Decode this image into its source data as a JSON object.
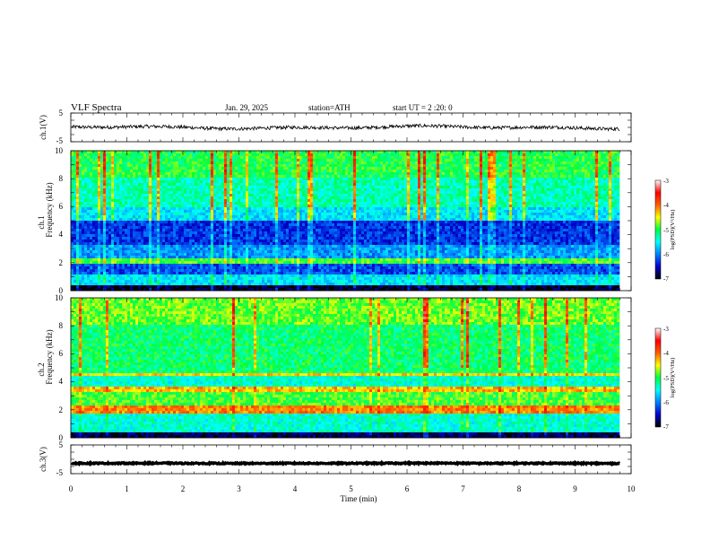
{
  "header": {
    "title": "VLF  Spectra",
    "date": "Jan. 29, 2025",
    "station": "station=ATH",
    "start": "start  UT  =   2  :20: 0"
  },
  "chart_data": [
    {
      "type": "line",
      "panel": "ch1-waveform",
      "ylabel": "ch.1(V)",
      "y_ticks": [
        "5",
        "-5"
      ],
      "ylim": [
        -5,
        5
      ],
      "xlim": [
        0,
        10
      ],
      "data_extent_min": 9.8,
      "series": [
        {
          "approx_level": 0,
          "amplitude": 0.6
        }
      ]
    },
    {
      "type": "heatmap",
      "panel": "ch1-spectrogram",
      "label_ch": "ch.1",
      "ylabel": "Frequency  (kHz)",
      "y_ticks": [
        "10",
        "8",
        "6",
        "4",
        "2",
        "0"
      ],
      "ylim": [
        0,
        10
      ],
      "xlim": [
        0,
        10
      ],
      "data_extent_min": 9.8,
      "colorbar": {
        "ticks": [
          "-3",
          "-4",
          "-5",
          "-6",
          "-7"
        ],
        "label": "log(PSD)(V²/Hz)",
        "range": [
          -7,
          -3
        ],
        "colors": [
          "#000000",
          "#0000cc",
          "#0080ff",
          "#00ffff",
          "#00ff40",
          "#ffff00",
          "#ff6000",
          "#ff0000",
          "#ffffff"
        ]
      }
    },
    {
      "type": "heatmap",
      "panel": "ch2-spectrogram",
      "label_ch": "ch.2",
      "ylabel": "Frequency  (kHz)",
      "y_ticks": [
        "10",
        "8",
        "6",
        "4",
        "2",
        "0"
      ],
      "ylim": [
        0,
        10
      ],
      "xlim": [
        0,
        10
      ],
      "data_extent_min": 9.8,
      "colorbar": {
        "ticks": [
          "-3",
          "-4",
          "-5",
          "-6",
          "-7"
        ],
        "label": "log(PSD)(V²/Hz)",
        "range": [
          -7,
          -3
        ],
        "colors": [
          "#000000",
          "#0000cc",
          "#0080ff",
          "#00ffff",
          "#00ff40",
          "#ffff00",
          "#ff6000",
          "#ff0000",
          "#ffffff"
        ]
      }
    },
    {
      "type": "line",
      "panel": "ch3-waveform",
      "ylabel": "ch.3(V)",
      "y_ticks": [
        "5",
        "-5"
      ],
      "ylim": [
        -5,
        5
      ],
      "xlim": [
        0,
        10
      ],
      "data_extent_min": 9.8,
      "series": [
        {
          "approx_level": -1.4,
          "amplitude": 0.2
        }
      ]
    }
  ],
  "xaxis": {
    "label": "Time  (min)",
    "ticks": [
      "0",
      "1",
      "2",
      "3",
      "4",
      "5",
      "6",
      "7",
      "8",
      "9",
      "10"
    ]
  }
}
